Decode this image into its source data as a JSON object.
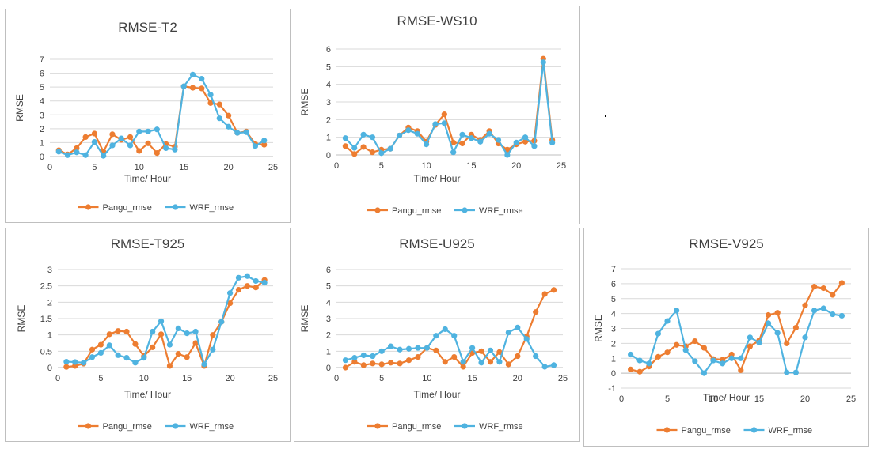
{
  "colors": {
    "pangu": "#ED7D31",
    "wrf": "#4FB3E0",
    "grid": "#D9D9D9",
    "text": "#404040"
  },
  "legend_labels": [
    "Pangu_rmse",
    "WRF_rmse"
  ],
  "chart_data": [
    {
      "type": "line",
      "title": "RMSE-T2",
      "xlabel": "Time/ Hour",
      "ylabel": "RMSE",
      "xlim": [
        0,
        25
      ],
      "ylim": [
        0,
        7
      ],
      "xticks": [
        0,
        5,
        10,
        15,
        20,
        25
      ],
      "yticks": [
        0,
        1,
        2,
        3,
        4,
        5,
        6,
        7
      ],
      "x": [
        1,
        2,
        3,
        4,
        5,
        6,
        7,
        8,
        9,
        10,
        11,
        12,
        13,
        14,
        15,
        16,
        17,
        18,
        19,
        20,
        21,
        22,
        23,
        24
      ],
      "series": [
        {
          "name": "Pangu_rmse",
          "values": [
            0.45,
            0.15,
            0.6,
            1.4,
            1.65,
            0.35,
            1.6,
            1.2,
            1.4,
            0.4,
            0.95,
            0.25,
            0.9,
            0.7,
            5.05,
            4.95,
            4.9,
            3.85,
            3.75,
            2.95,
            1.7,
            1.8,
            0.9,
            0.85
          ]
        },
        {
          "name": "WRF_rmse",
          "values": [
            0.35,
            0.1,
            0.3,
            0.1,
            1.05,
            0.05,
            0.8,
            1.3,
            0.8,
            1.8,
            1.8,
            1.95,
            0.6,
            0.5,
            5.05,
            5.9,
            5.6,
            4.45,
            2.75,
            2.15,
            1.7,
            1.75,
            0.75,
            1.15
          ]
        }
      ]
    },
    {
      "type": "line",
      "title": "RMSE-WS10",
      "xlabel": "Time/ Hour",
      "ylabel": "RMSE",
      "xlim": [
        0,
        25
      ],
      "ylim": [
        0,
        6
      ],
      "xticks": [
        0,
        5,
        10,
        15,
        20,
        25
      ],
      "yticks": [
        0,
        1,
        2,
        3,
        4,
        5,
        6
      ],
      "x": [
        1,
        2,
        3,
        4,
        5,
        6,
        7,
        8,
        9,
        10,
        11,
        12,
        13,
        14,
        15,
        16,
        17,
        18,
        19,
        20,
        21,
        22,
        23,
        24
      ],
      "series": [
        {
          "name": "Pangu_rmse",
          "values": [
            0.5,
            0.05,
            0.45,
            0.15,
            0.3,
            0.35,
            1.1,
            1.55,
            1.35,
            0.75,
            1.7,
            2.3,
            0.7,
            0.65,
            1.15,
            0.85,
            1.35,
            0.65,
            0.3,
            0.6,
            0.75,
            0.8,
            5.45,
            0.85
          ]
        },
        {
          "name": "WRF_rmse",
          "values": [
            0.95,
            0.4,
            1.15,
            1.0,
            0.1,
            0.35,
            1.1,
            1.4,
            1.2,
            0.6,
            1.75,
            1.8,
            0.15,
            1.15,
            0.95,
            0.75,
            1.2,
            0.85,
            0.0,
            0.7,
            1.0,
            0.5,
            5.25,
            0.7
          ]
        }
      ]
    },
    {
      "type": "line",
      "title": "RMSE-T925",
      "xlabel": "Time/ Hour",
      "ylabel": "RMSE",
      "xlim": [
        0,
        25
      ],
      "ylim": [
        0,
        3
      ],
      "xticks": [
        0,
        5,
        10,
        15,
        20,
        25
      ],
      "yticks": [
        0,
        0.5,
        1,
        1.5,
        2,
        2.5,
        3
      ],
      "x": [
        1,
        2,
        3,
        4,
        5,
        6,
        7,
        8,
        9,
        10,
        11,
        12,
        13,
        14,
        15,
        16,
        17,
        18,
        19,
        20,
        21,
        22,
        23,
        24
      ],
      "series": [
        {
          "name": "Pangu_rmse",
          "values": [
            0.02,
            0.05,
            0.12,
            0.55,
            0.7,
            1.02,
            1.12,
            1.1,
            0.72,
            0.35,
            0.62,
            1.02,
            0.05,
            0.42,
            0.32,
            0.75,
            0.05,
            1.0,
            1.4,
            1.97,
            2.38,
            2.5,
            2.45,
            2.68
          ]
        },
        {
          "name": "WRF_rmse",
          "values": [
            0.18,
            0.17,
            0.15,
            0.32,
            0.45,
            0.68,
            0.38,
            0.3,
            0.15,
            0.3,
            1.1,
            1.42,
            0.7,
            1.2,
            1.05,
            1.1,
            0.1,
            0.55,
            1.4,
            2.28,
            2.75,
            2.8,
            2.65,
            2.6
          ]
        }
      ]
    },
    {
      "type": "line",
      "title": "RMSE-U925",
      "xlabel": "Time/ Hour",
      "ylabel": "RMSE",
      "xlim": [
        0,
        25
      ],
      "ylim": [
        0,
        6
      ],
      "xticks": [
        0,
        5,
        10,
        15,
        20,
        25
      ],
      "yticks": [
        0,
        1,
        2,
        3,
        4,
        5,
        6
      ],
      "x": [
        1,
        2,
        3,
        4,
        5,
        6,
        7,
        8,
        9,
        10,
        11,
        12,
        13,
        14,
        15,
        16,
        17,
        18,
        19,
        20,
        21,
        22,
        23,
        24
      ],
      "series": [
        {
          "name": "Pangu_rmse",
          "values": [
            0.0,
            0.35,
            0.15,
            0.25,
            0.2,
            0.3,
            0.25,
            0.45,
            0.65,
            1.2,
            1.05,
            0.35,
            0.65,
            0.05,
            0.9,
            1.0,
            0.35,
            0.95,
            0.2,
            0.7,
            1.9,
            3.4,
            4.5,
            4.75
          ]
        },
        {
          "name": "WRF_rmse",
          "values": [
            0.45,
            0.6,
            0.75,
            0.7,
            1.0,
            1.3,
            1.1,
            1.15,
            1.2,
            1.2,
            1.95,
            2.35,
            1.95,
            0.35,
            1.2,
            0.3,
            1.05,
            0.35,
            2.15,
            2.45,
            1.75,
            0.7,
            0.05,
            0.15
          ]
        }
      ]
    },
    {
      "type": "line",
      "title": "RMSE-V925",
      "xlabel": "Time/ Hour",
      "ylabel": "RMSE",
      "xlim": [
        0,
        25
      ],
      "ylim": [
        -1,
        7
      ],
      "xticks": [
        0,
        5,
        10,
        15,
        20,
        25
      ],
      "yticks": [
        -1,
        0,
        1,
        2,
        3,
        4,
        5,
        6,
        7
      ],
      "x": [
        1,
        2,
        3,
        4,
        5,
        6,
        7,
        8,
        9,
        10,
        11,
        12,
        13,
        14,
        15,
        16,
        17,
        18,
        19,
        20,
        21,
        22,
        23,
        24
      ],
      "series": [
        {
          "name": "Pangu_rmse",
          "values": [
            0.25,
            0.1,
            0.45,
            1.1,
            1.4,
            1.9,
            1.8,
            2.15,
            1.7,
            0.95,
            0.9,
            1.25,
            0.2,
            1.8,
            2.2,
            3.9,
            4.05,
            2.0,
            3.05,
            4.55,
            5.8,
            5.7,
            5.25,
            6.05
          ]
        },
        {
          "name": "WRF_rmse",
          "values": [
            1.25,
            0.85,
            0.65,
            2.65,
            3.5,
            4.2,
            1.55,
            0.8,
            0.0,
            0.85,
            0.65,
            1.0,
            1.0,
            2.4,
            2.05,
            3.35,
            2.7,
            0.05,
            0.05,
            2.4,
            4.2,
            4.35,
            3.95,
            3.85
          ]
        }
      ]
    }
  ]
}
